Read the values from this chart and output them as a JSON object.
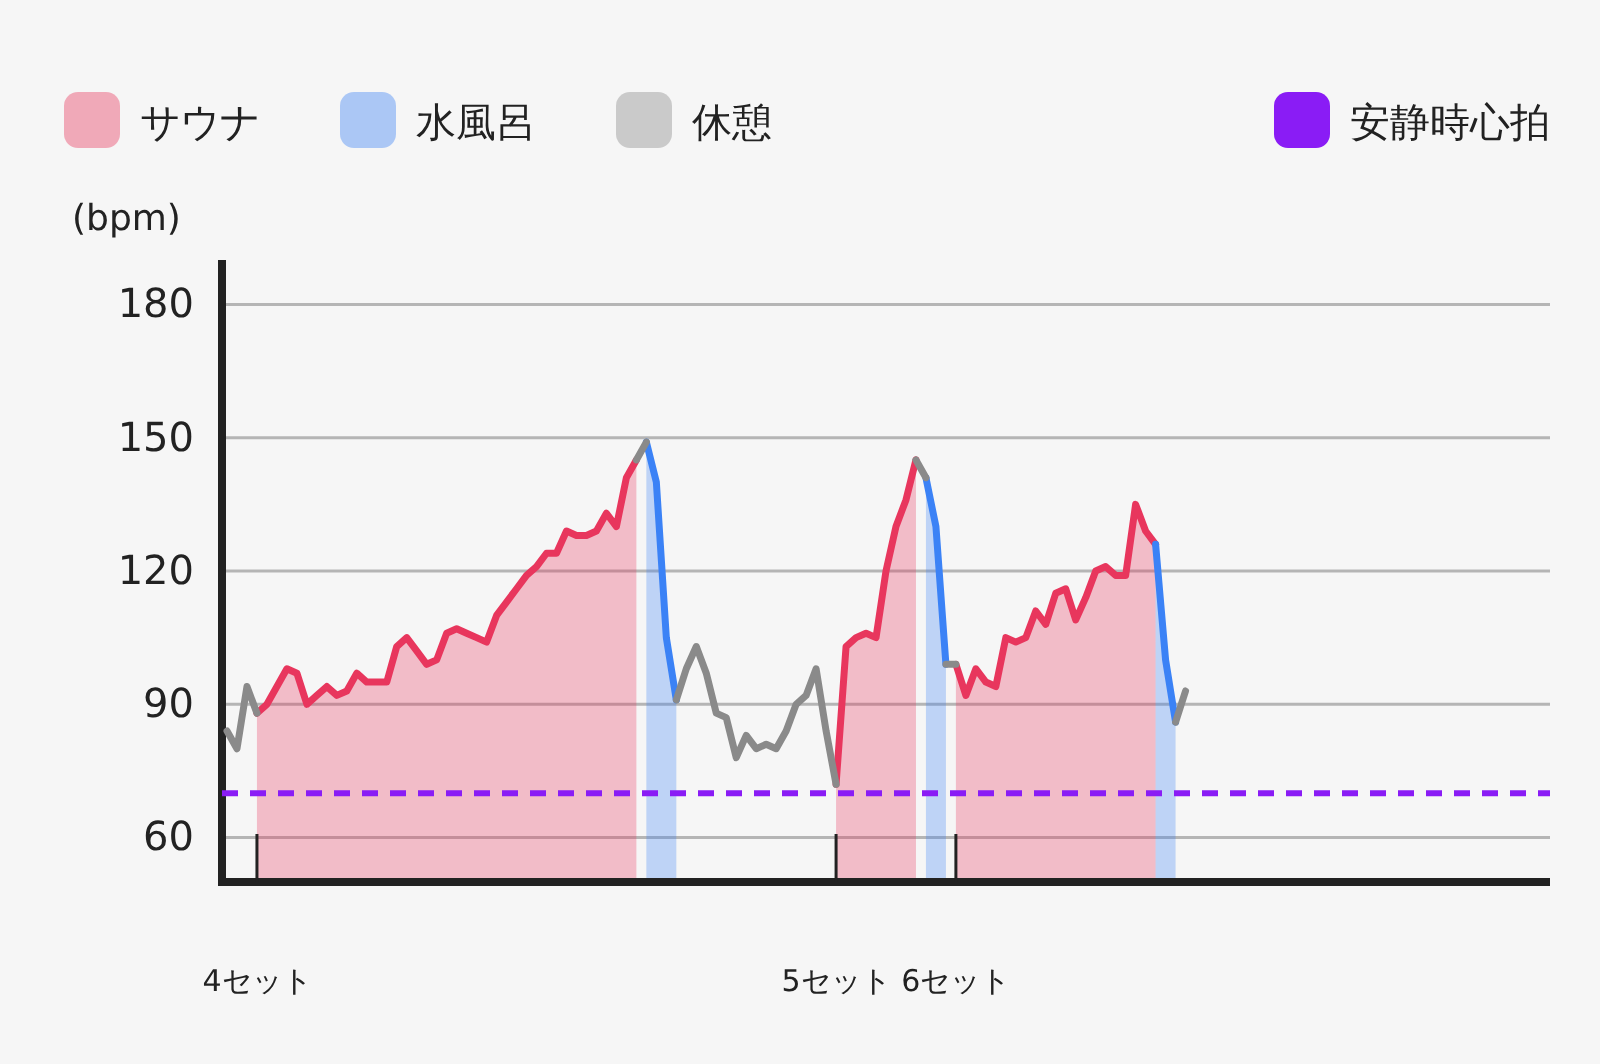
{
  "chart_data": {
    "type": "line",
    "ylabel": "(bpm)",
    "categories": [
      null,
      null,
      null,
      "4セット",
      null,
      null,
      null,
      null,
      null,
      null,
      null,
      null,
      null,
      null,
      null,
      null,
      null,
      null,
      null,
      null,
      null,
      null,
      null,
      null,
      null,
      null,
      null,
      null,
      null,
      null,
      null,
      null,
      null,
      null,
      null,
      null,
      null,
      null,
      null,
      null,
      null,
      null,
      null,
      null,
      null,
      null,
      null,
      null,
      null,
      null,
      null,
      null,
      null,
      null,
      null,
      null,
      null,
      null,
      null,
      null,
      null,
      "5セット",
      null,
      null,
      null,
      null,
      null,
      null,
      null,
      null,
      null,
      null,
      null,
      "6セット",
      null,
      null,
      null,
      null,
      null,
      null,
      null,
      null,
      null,
      null,
      null,
      null,
      null,
      null,
      null,
      null,
      null,
      null,
      null,
      null,
      null,
      null,
      null,
      null,
      null,
      null,
      null,
      null,
      null,
      null,
      null,
      null,
      null,
      null,
      null,
      null,
      null,
      null,
      null,
      null,
      null,
      null,
      null,
      null,
      null,
      null,
      null,
      null,
      null,
      null,
      null,
      null,
      null,
      null,
      null,
      null,
      null,
      null,
      null
    ],
    "series": [
      {
        "name": "サウナ",
        "type": "area",
        "color": "#e8365d",
        "values": [
          null,
          null,
          null,
          88,
          90,
          94,
          98,
          97,
          90,
          92,
          94,
          92,
          93,
          97,
          95,
          95,
          95,
          103,
          105,
          102,
          99,
          100,
          106,
          107,
          106,
          105,
          104,
          110,
          113,
          116,
          119,
          121,
          124,
          124,
          129,
          128,
          128,
          129,
          133,
          130,
          141,
          145,
          null,
          null,
          null,
          null,
          null,
          null,
          null,
          null,
          null,
          null,
          null,
          null,
          null,
          null,
          null,
          null,
          null,
          null,
          null,
          72,
          103,
          105,
          106,
          105,
          120,
          130,
          136,
          145,
          null,
          null,
          null,
          99,
          92,
          98,
          95,
          94,
          105,
          104,
          105,
          111,
          108,
          115,
          116,
          109,
          114,
          120,
          121,
          119,
          119,
          135,
          129,
          126,
          null,
          null,
          null,
          null,
          null,
          null,
          null,
          null,
          null,
          null,
          null,
          null,
          null,
          null,
          null,
          null,
          null,
          null,
          null,
          null,
          null,
          null,
          null,
          null,
          null,
          null,
          null,
          null,
          null,
          null,
          null,
          null,
          null,
          null,
          null,
          null,
          null,
          null,
          null
        ]
      },
      {
        "name": "水風呂",
        "type": "area",
        "color": "#3b82f6",
        "values": [
          null,
          null,
          null,
          null,
          null,
          null,
          null,
          null,
          null,
          null,
          null,
          null,
          null,
          null,
          null,
          null,
          null,
          null,
          null,
          null,
          null,
          null,
          null,
          null,
          null,
          null,
          null,
          null,
          null,
          null,
          null,
          null,
          null,
          null,
          null,
          null,
          null,
          null,
          null,
          null,
          null,
          null,
          149,
          140,
          105,
          91,
          null,
          null,
          null,
          null,
          null,
          null,
          null,
          null,
          null,
          null,
          null,
          null,
          null,
          null,
          null,
          null,
          null,
          null,
          null,
          null,
          null,
          null,
          null,
          null,
          141,
          130,
          99,
          null,
          null,
          null,
          null,
          null,
          null,
          null,
          null,
          null,
          null,
          null,
          null,
          null,
          null,
          null,
          null,
          null,
          null,
          null,
          null,
          126,
          100,
          86,
          null,
          null,
          null,
          null,
          null,
          null,
          null,
          null,
          null,
          null,
          null,
          null,
          null,
          null,
          null,
          null,
          null,
          null,
          null,
          null,
          null,
          null,
          null,
          null,
          null,
          null,
          null,
          null,
          null,
          null,
          null,
          null,
          null,
          null,
          null,
          null,
          null
        ]
      },
      {
        "name": "休憩",
        "type": "line",
        "color": "#8a8a8a",
        "values": [
          84,
          80,
          94,
          88,
          null,
          null,
          null,
          null,
          null,
          null,
          null,
          null,
          null,
          null,
          null,
          null,
          null,
          null,
          null,
          null,
          null,
          null,
          null,
          null,
          null,
          null,
          null,
          null,
          null,
          null,
          null,
          null,
          null,
          null,
          null,
          null,
          null,
          null,
          null,
          null,
          null,
          145,
          149,
          null,
          null,
          91,
          98,
          103,
          97,
          88,
          87,
          78,
          83,
          80,
          81,
          80,
          84,
          90,
          92,
          98,
          84,
          72,
          null,
          null,
          null,
          null,
          null,
          null,
          null,
          145,
          141,
          null,
          99,
          99,
          null,
          null,
          null,
          null,
          null,
          null,
          null,
          null,
          null,
          null,
          null,
          null,
          null,
          null,
          null,
          null,
          null,
          null,
          null,
          null,
          null,
          86,
          93,
          null,
          null,
          null,
          null,
          null,
          null,
          null,
          null,
          null,
          null,
          null,
          null,
          null,
          null,
          null,
          null,
          null,
          null,
          null,
          null,
          null,
          null,
          null,
          null,
          null,
          null,
          null,
          null,
          null,
          null,
          null,
          null,
          null,
          null,
          null,
          null
        ]
      }
    ],
    "ylim": [
      50,
      190
    ],
    "yticks": [
      60,
      90,
      120,
      150,
      180
    ],
    "grid": "y",
    "legend": "top",
    "ref_lines": [
      {
        "axis": "y",
        "value": 70,
        "label": "安静時心拍",
        "color": "#8a1cf5",
        "line_style": "dashed"
      }
    ]
  }
}
